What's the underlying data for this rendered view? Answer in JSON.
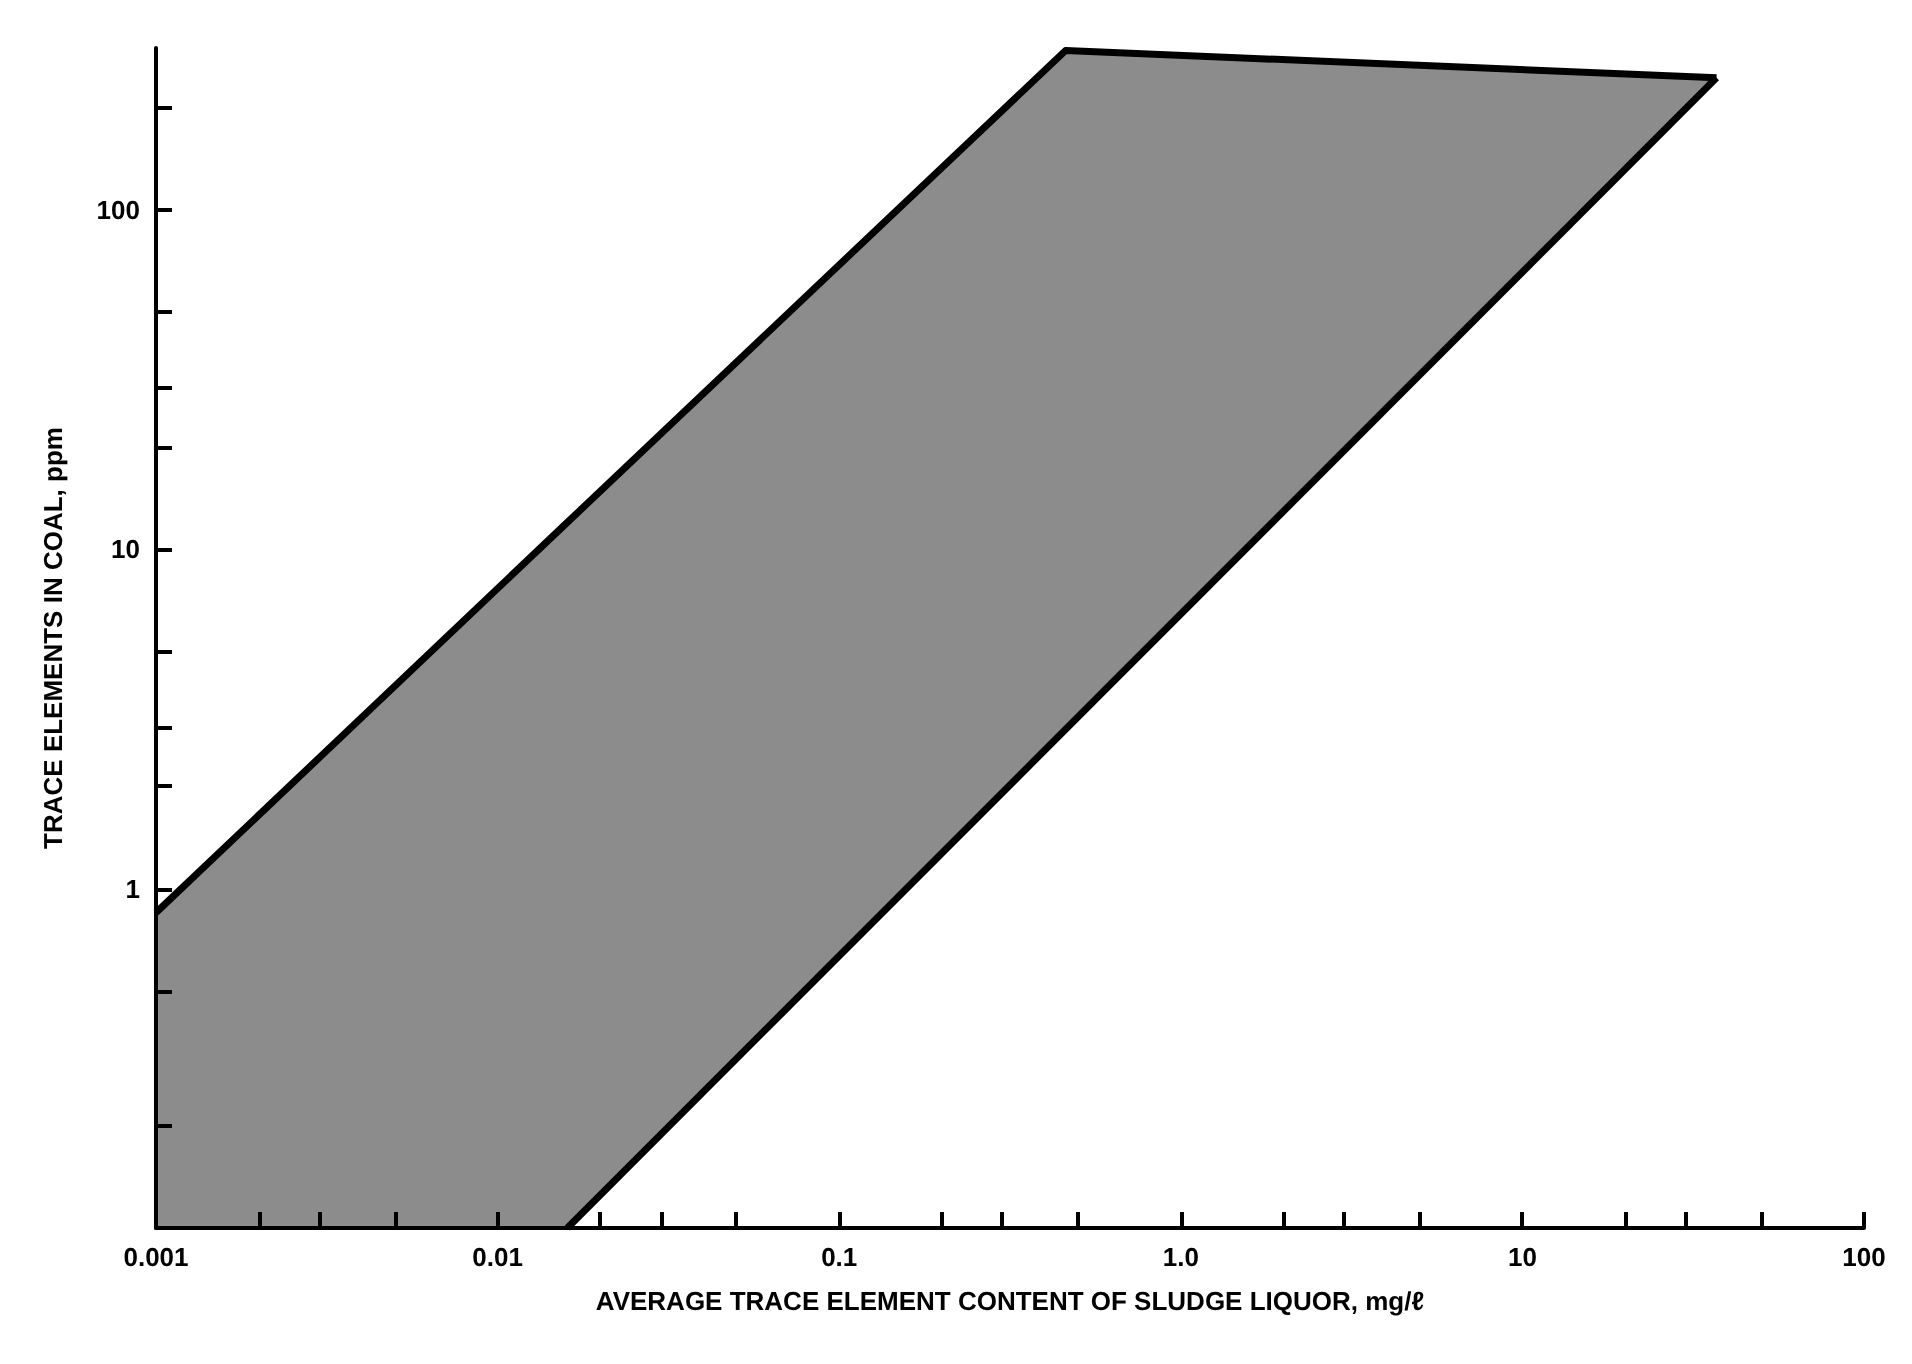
{
  "chart_data": {
    "type": "line",
    "xlabel": "AVERAGE TRACE ELEMENT CONTENT OF SLUDGE LIQUOR, mg/ℓ",
    "ylabel": "TRACE ELEMENTS IN COAL, ppm",
    "log": "xy",
    "grid": false,
    "xlim": [
      0.001,
      100
    ],
    "ylim": [
      0.1,
      300
    ],
    "xticks": [
      {
        "value": 0.001,
        "label": "0.001"
      },
      {
        "value": 0.002,
        "label": null
      },
      {
        "value": 0.003,
        "label": null
      },
      {
        "value": 0.005,
        "label": null
      },
      {
        "value": 0.01,
        "label": "0.01"
      },
      {
        "value": 0.02,
        "label": null
      },
      {
        "value": 0.03,
        "label": null
      },
      {
        "value": 0.05,
        "label": null
      },
      {
        "value": 0.1,
        "label": "0.1"
      },
      {
        "value": 0.2,
        "label": null
      },
      {
        "value": 0.3,
        "label": null
      },
      {
        "value": 0.5,
        "label": null
      },
      {
        "value": 1,
        "label": "1.0"
      },
      {
        "value": 2,
        "label": null
      },
      {
        "value": 3,
        "label": null
      },
      {
        "value": 5,
        "label": null
      },
      {
        "value": 10,
        "label": "10"
      },
      {
        "value": 20,
        "label": null
      },
      {
        "value": 30,
        "label": null
      },
      {
        "value": 50,
        "label": null
      },
      {
        "value": 100,
        "label": "100"
      }
    ],
    "yticks": [
      {
        "value": 0.2,
        "label": null
      },
      {
        "value": 0.5,
        "label": null
      },
      {
        "value": 1,
        "label": "1"
      },
      {
        "value": 2,
        "label": null
      },
      {
        "value": 3,
        "label": null
      },
      {
        "value": 5,
        "label": null
      },
      {
        "value": 10,
        "label": "10"
      },
      {
        "value": 20,
        "label": null
      },
      {
        "value": 30,
        "label": null
      },
      {
        "value": 50,
        "label": null
      },
      {
        "value": 100,
        "label": "100"
      },
      {
        "value": 200,
        "label": null
      }
    ],
    "series": [
      {
        "color": "#000000",
        "x": [
          0.001,
          0.016,
          0.46,
          37
        ],
        "values": [
          0.85,
          12,
          295,
          245
        ],
        "lower": [
          0.1,
          0.1,
          2.9,
          245
        ],
        "upper": [
          0.85,
          12,
          295,
          245
        ]
      },
      {
        "color": "#000000",
        "x": [
          0.016,
          37
        ],
        "values": [
          0.1,
          245
        ]
      }
    ]
  }
}
